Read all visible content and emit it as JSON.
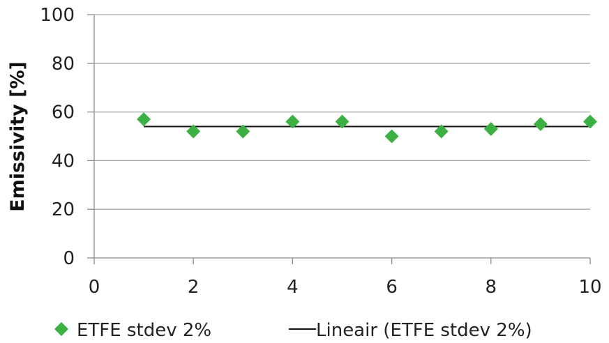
{
  "chart_data": {
    "type": "scatter",
    "title": "",
    "xlabel": "",
    "ylabel": "Emissivity [%]",
    "xlim": [
      0,
      10
    ],
    "ylim": [
      0,
      100
    ],
    "x_ticks": [
      0,
      2,
      4,
      6,
      8,
      10
    ],
    "y_ticks": [
      0,
      20,
      40,
      60,
      80,
      100
    ],
    "grid": "horizontal",
    "legend_position": "bottom",
    "series": [
      {
        "name": "ETFE stdev 2%",
        "marker": "diamond",
        "color": "#3cb043",
        "x": [
          1,
          2,
          3,
          4,
          5,
          6,
          7,
          8,
          9,
          10
        ],
        "y": [
          57,
          52,
          52,
          56,
          56,
          50,
          52,
          53,
          55,
          56
        ]
      }
    ],
    "trendline": {
      "name": "Lineair (ETFE stdev 2%)",
      "kind": "linear",
      "color": "#111111",
      "x": [
        1,
        10
      ],
      "y": [
        54,
        54
      ]
    }
  }
}
